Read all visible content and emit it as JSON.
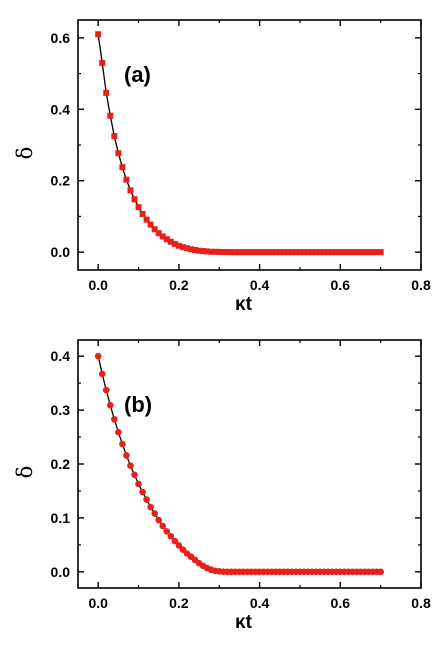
{
  "colors": {
    "marker": "#e8201c",
    "line": "#000000",
    "axis": "#000000"
  },
  "chart_data": [
    {
      "type": "line",
      "panel_label": "(a)",
      "marker": "square",
      "xlabel": "κt",
      "ylabel": "δ",
      "xlim": [
        -0.05,
        0.8
      ],
      "ylim": [
        -0.05,
        0.65
      ],
      "xticks": [
        0.0,
        0.2,
        0.4,
        0.6,
        0.8
      ],
      "xtick_labels": [
        "0.0",
        "0.2",
        "0.4",
        "0.6",
        "0.8"
      ],
      "yticks": [
        0.0,
        0.2,
        0.4,
        0.6
      ],
      "ytick_labels": [
        "0.0",
        "0.2",
        "0.4",
        "0.6"
      ],
      "grid": false,
      "x": [
        0.0,
        0.01,
        0.02,
        0.03,
        0.04,
        0.05,
        0.06,
        0.07,
        0.08,
        0.09,
        0.1,
        0.11,
        0.12,
        0.13,
        0.14,
        0.15,
        0.16,
        0.17,
        0.18,
        0.19,
        0.2,
        0.21,
        0.22,
        0.23,
        0.24,
        0.25,
        0.26,
        0.27,
        0.28,
        0.29,
        0.3,
        0.31,
        0.32,
        0.33,
        0.34,
        0.35,
        0.36,
        0.37,
        0.38,
        0.39,
        0.4,
        0.41,
        0.42,
        0.43,
        0.44,
        0.45,
        0.46,
        0.47,
        0.48,
        0.49,
        0.5,
        0.51,
        0.52,
        0.53,
        0.54,
        0.55,
        0.56,
        0.57,
        0.58,
        0.59,
        0.6,
        0.61,
        0.62,
        0.63,
        0.64,
        0.65,
        0.66,
        0.67,
        0.68,
        0.69,
        0.7
      ],
      "y": [
        0.61,
        0.53,
        0.446,
        0.382,
        0.325,
        0.277,
        0.238,
        0.203,
        0.173,
        0.148,
        0.126,
        0.107,
        0.091,
        0.077,
        0.064,
        0.053,
        0.044,
        0.036,
        0.029,
        0.023,
        0.018,
        0.014,
        0.011,
        0.008,
        0.006,
        0.004,
        0.003,
        0.002,
        0.001,
        0.001,
        0.0005,
        0.0003,
        0.0002,
        0.0001,
        0.0,
        0.0,
        0.0,
        0.0,
        0.0,
        0.0,
        0.0,
        0.0,
        0.0,
        0.0,
        0.0,
        0.0,
        0.0,
        0.0,
        0.0,
        0.0,
        0.0,
        0.0,
        0.0,
        0.0,
        0.0,
        0.0,
        0.0,
        0.0,
        0.0,
        0.0,
        0.0,
        0.0,
        0.0,
        0.0,
        0.0,
        0.0,
        0.0,
        0.0,
        0.0,
        0.0,
        0.0
      ]
    },
    {
      "type": "line",
      "panel_label": "(b)",
      "marker": "circle",
      "xlabel": "κt",
      "ylabel": "δ",
      "xlim": [
        -0.05,
        0.8
      ],
      "ylim": [
        -0.03,
        0.43
      ],
      "xticks": [
        0.0,
        0.2,
        0.4,
        0.6,
        0.8
      ],
      "xtick_labels": [
        "0.0",
        "0.2",
        "0.4",
        "0.6",
        "0.8"
      ],
      "yticks": [
        0.0,
        0.1,
        0.2,
        0.3,
        0.4
      ],
      "ytick_labels": [
        "0.0",
        "0.1",
        "0.2",
        "0.3",
        "0.4"
      ],
      "grid": false,
      "x": [
        0.0,
        0.01,
        0.02,
        0.03,
        0.04,
        0.05,
        0.06,
        0.07,
        0.08,
        0.09,
        0.1,
        0.11,
        0.12,
        0.13,
        0.14,
        0.15,
        0.16,
        0.17,
        0.18,
        0.19,
        0.2,
        0.21,
        0.22,
        0.23,
        0.24,
        0.25,
        0.26,
        0.27,
        0.28,
        0.29,
        0.3,
        0.31,
        0.32,
        0.33,
        0.34,
        0.35,
        0.36,
        0.37,
        0.38,
        0.39,
        0.4,
        0.41,
        0.42,
        0.43,
        0.44,
        0.45,
        0.46,
        0.47,
        0.48,
        0.49,
        0.5,
        0.51,
        0.52,
        0.53,
        0.54,
        0.55,
        0.56,
        0.57,
        0.58,
        0.59,
        0.6,
        0.61,
        0.62,
        0.63,
        0.64,
        0.65,
        0.66,
        0.67,
        0.68,
        0.69,
        0.7
      ],
      "y": [
        0.4,
        0.367,
        0.337,
        0.309,
        0.283,
        0.259,
        0.237,
        0.216,
        0.197,
        0.18,
        0.163,
        0.148,
        0.134,
        0.12,
        0.108,
        0.096,
        0.085,
        0.075,
        0.066,
        0.057,
        0.049,
        0.041,
        0.034,
        0.028,
        0.022,
        0.016,
        0.011,
        0.007,
        0.004,
        0.002,
        0.001,
        0.0003,
        0.0001,
        0.0,
        0.0,
        0.0,
        0.0,
        0.0,
        0.0,
        0.0,
        0.0,
        0.0,
        0.0,
        0.0,
        0.0,
        0.0,
        0.0,
        0.0,
        0.0,
        0.0,
        0.0,
        0.0,
        0.0,
        0.0,
        0.0,
        0.0,
        0.0,
        0.0,
        0.0,
        0.0,
        0.0,
        0.0,
        0.0,
        0.0,
        0.0,
        0.0,
        0.0,
        0.0,
        0.0,
        0.0,
        0.0
      ]
    }
  ]
}
